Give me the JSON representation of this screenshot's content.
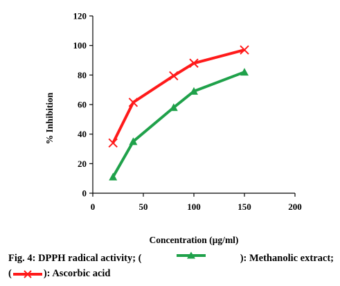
{
  "chart_data": {
    "type": "line",
    "xlabel": "Concentration (µg/ml)",
    "ylabel": "% Inhibition",
    "xlim": [
      0,
      200
    ],
    "ylim": [
      0,
      120
    ],
    "xticks": [
      0,
      50,
      100,
      150,
      200
    ],
    "yticks": [
      0,
      20,
      40,
      60,
      80,
      100,
      120
    ],
    "grid": false,
    "series": [
      {
        "name": "Methanolic extract",
        "color": "#1fa14a",
        "marker": "triangle",
        "x": [
          20,
          40,
          80,
          100,
          150
        ],
        "y": [
          11,
          35,
          58,
          69,
          82
        ]
      },
      {
        "name": "Ascorbic acid",
        "color": "#ff1a1a",
        "marker": "x",
        "x": [
          20,
          40,
          80,
          100,
          150
        ],
        "y": [
          34,
          61.5,
          79.5,
          88,
          97
        ]
      }
    ]
  },
  "caption": {
    "part1": "Fig. 4: DPPH radical activity; (",
    "part2": "): Methanolic extract;",
    "part3": "(",
    "part4": "): Ascorbic acid"
  }
}
